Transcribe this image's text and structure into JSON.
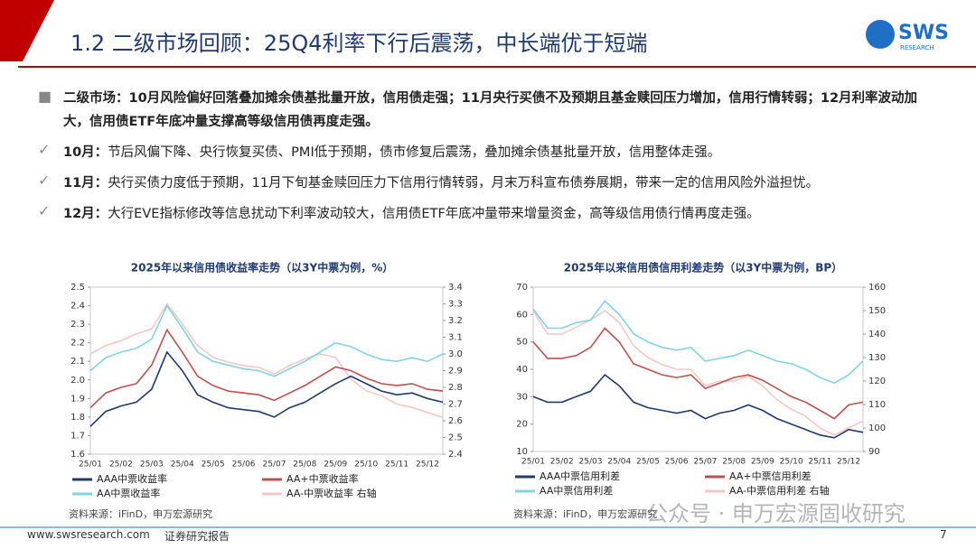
{
  "header": {
    "title": "1.2 二级市场回顾：25Q4利率下行后震荡，中长端优于短端",
    "logo": "SWS",
    "logo_sub": "RESEARCH"
  },
  "summary": "二级市场：10月风险偏好回落叠加摊余债基批量开放，信用债走强；11月央行买债不及预期且基金赎回压力增加，信用行情转弱；12月利率波动加大，信用债ETF年底冲量支撑高等级信用债再度走强。",
  "points": [
    {
      "label": "10月：",
      "text": "节后风偏下降、央行恢复买债、PMI低于预期，债市修复后震荡，叠加摊余债基批量开放，信用整体走强。"
    },
    {
      "label": "11月：",
      "text": "央行买债力度低于预期，11月下旬基金赎回压力下信用行情转弱，月末万科宣布债券展期，带来一定的信用风险外溢担忧。"
    },
    {
      "label": "12月：",
      "text": "大行EVE指标修改等信息扰动下利率波动较大，信用债ETF年底冲量带来增量资金，高等级信用债行情再度走强。"
    }
  ],
  "chart_data": [
    {
      "type": "line",
      "title": "2025年以来信用债收益率走势（以3Y中票为例，%）",
      "categories": [
        "25/01",
        null,
        "25/02",
        null,
        "25/03",
        null,
        "25/04",
        null,
        "25/05",
        null,
        "25/06",
        null,
        "25/07",
        null,
        "25/08",
        null,
        "25/09",
        null,
        "25/10",
        null,
        "25/11",
        null,
        "25/12",
        null
      ],
      "ylim": [
        1.6,
        2.5
      ],
      "yticks": [
        1.6,
        1.7,
        1.8,
        1.9,
        {
          "value": 2,
          "label": "2.0"
        },
        2.1,
        2.2,
        2.3,
        2.4,
        2.5
      ],
      "y2lim": [
        2.4,
        3.4
      ],
      "y2ticks": [
        2.4,
        2.5,
        2.6,
        2.7,
        2.8,
        2.9,
        {
          "value": 3,
          "label": "3.0"
        },
        3.1,
        3.2,
        3.3,
        3.4
      ],
      "series": [
        {
          "name": "AAA中票收益率",
          "color": "#1f3a6e",
          "values": [
            1.75,
            1.83,
            1.86,
            1.88,
            1.95,
            2.15,
            2.05,
            1.92,
            1.88,
            1.85,
            1.84,
            1.83,
            1.8,
            1.85,
            1.88,
            1.93,
            1.98,
            2.02,
            1.98,
            1.94,
            1.92,
            1.93,
            1.9,
            1.88
          ]
        },
        {
          "name": "AA+中票收益率",
          "color": "#c0504d",
          "values": [
            1.85,
            1.93,
            1.96,
            1.98,
            2.08,
            2.27,
            2.15,
            2.02,
            1.97,
            1.94,
            1.93,
            1.92,
            1.89,
            1.93,
            1.97,
            2.02,
            2.07,
            2.05,
            2.01,
            1.98,
            1.97,
            1.98,
            1.95,
            1.94
          ]
        },
        {
          "name": "AA中票收益率",
          "color": "#7fd3e6",
          "values": [
            2.05,
            2.12,
            2.15,
            2.17,
            2.22,
            2.4,
            2.28,
            2.15,
            2.1,
            2.08,
            2.06,
            2.05,
            2.02,
            2.06,
            2.1,
            2.15,
            2.2,
            2.18,
            2.14,
            2.11,
            2.1,
            2.12,
            2.1,
            2.14
          ]
        },
        {
          "name": "AA-中票收益率 右轴",
          "color": "#f4c7c3",
          "axis": "y2",
          "values": [
            3.0,
            3.05,
            3.08,
            3.12,
            3.15,
            3.3,
            3.18,
            3.05,
            2.98,
            2.95,
            2.93,
            2.92,
            2.88,
            2.93,
            2.97,
            3.0,
            2.98,
            2.85,
            2.78,
            2.75,
            2.7,
            2.68,
            2.65,
            2.62
          ]
        }
      ]
    },
    {
      "type": "line",
      "title": "2025年以来信用债信用利差走势（以3Y中票为例，BP）",
      "categories": [
        "25/01",
        null,
        "25/02",
        null,
        "25/03",
        null,
        "25/04",
        null,
        "25/05",
        null,
        "25/06",
        null,
        "25/07",
        null,
        "25/08",
        null,
        "25/09",
        null,
        "25/10",
        null,
        "25/11",
        null,
        "25/12",
        null
      ],
      "ylim": [
        10,
        70
      ],
      "yticks": [
        10,
        20,
        30,
        40,
        50,
        60,
        70
      ],
      "y2lim": [
        90,
        160
      ],
      "y2ticks": [
        90,
        100,
        110,
        120,
        130,
        140,
        150,
        160
      ],
      "series": [
        {
          "name": "AAA中票信用利差",
          "color": "#1f3a6e",
          "values": [
            30,
            28,
            28,
            30,
            32,
            38,
            34,
            28,
            26,
            25,
            24,
            25,
            22,
            24,
            25,
            27,
            25,
            22,
            20,
            18,
            16,
            15,
            18,
            17
          ]
        },
        {
          "name": "AA+中票信用利差",
          "color": "#c0504d",
          "values": [
            50,
            44,
            44,
            45,
            48,
            55,
            50,
            42,
            40,
            38,
            37,
            38,
            33,
            35,
            37,
            38,
            36,
            33,
            30,
            28,
            25,
            22,
            27,
            28
          ]
        },
        {
          "name": "AA中票信用利差",
          "color": "#7fd3e6",
          "values": [
            62,
            55,
            55,
            57,
            58,
            65,
            60,
            53,
            50,
            48,
            47,
            48,
            43,
            44,
            45,
            47,
            45,
            43,
            42,
            40,
            37,
            35,
            38,
            43
          ]
        },
        {
          "name": "AA-中票信用利差 右轴",
          "color": "#f4c7c3",
          "axis": "y2",
          "values": [
            150,
            140,
            140,
            143,
            146,
            150,
            145,
            135,
            130,
            127,
            125,
            125,
            118,
            120,
            120,
            122,
            118,
            112,
            108,
            105,
            100,
            97,
            100,
            103
          ]
        }
      ]
    }
  ],
  "sources": [
    "资料来源：iFinD，申万宏源研究",
    "资料来源：iFinD，申万宏源研究"
  ],
  "watermark": "公众号 · 申万宏源固收研究",
  "footer": {
    "url": "www.swsresearch.com",
    "label": "证券研究报告",
    "page": "7"
  }
}
